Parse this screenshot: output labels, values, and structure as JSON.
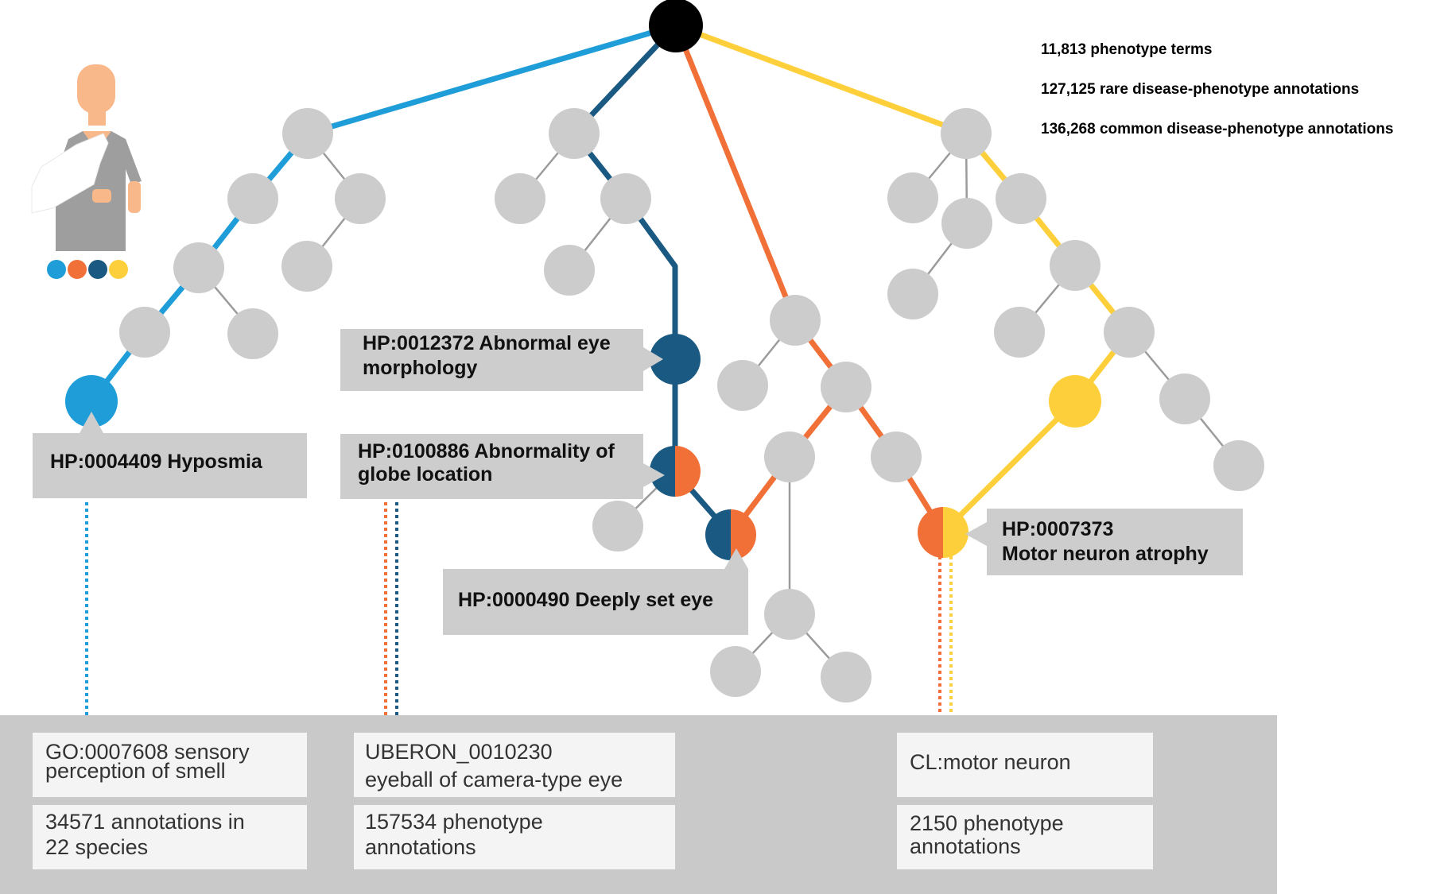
{
  "stats": [
    "11,813 phenotype terms",
    "127,125 rare disease-phenotype annotations",
    "136,268 common disease-phenotype annotations"
  ],
  "colors": {
    "blue": "#1e9dd8",
    "dark_blue": "#1a5a82",
    "orange": "#f07038",
    "yellow": "#fdd03b",
    "gray_node": "#cccccc",
    "gray_edge": "#9b9b9b",
    "root": "#000000",
    "label_bg": "#cdcdcd",
    "panel_bg": "#c9c9c9",
    "box_bg": "#f4f4f4"
  },
  "labels": {
    "hyposmia": "HP:0004409 Hyposmia",
    "eye_morph_1": "HP:0012372 Abnormal eye",
    "eye_morph_2": "morphology",
    "globe_1": "HP:0100886 Abnormality of",
    "globe_2": "globe location",
    "deep_eye": "HP:0000490 Deeply set eye",
    "motor_1": "HP:0007373",
    "motor_2": "Motor neuron atrophy"
  },
  "boxes": {
    "go_1": "GO:0007608 sensory",
    "go_2": "perception of smell",
    "go_count_1": "34571 annotations in",
    "go_count_2": "22 species",
    "uberon_1": "UBERON_0010230",
    "uberon_2": "eyeball of camera-type eye",
    "uberon_count_1": "157534 phenotype",
    "uberon_count_2": "annotations",
    "cl_1": "CL:motor neuron",
    "cl_count_1": "2150 phenotype",
    "cl_count_2": "annotations"
  },
  "icons": {
    "patient": "patient-with-arm-sling-icon",
    "dots": [
      "blue",
      "orange",
      "dark_blue",
      "yellow"
    ]
  }
}
